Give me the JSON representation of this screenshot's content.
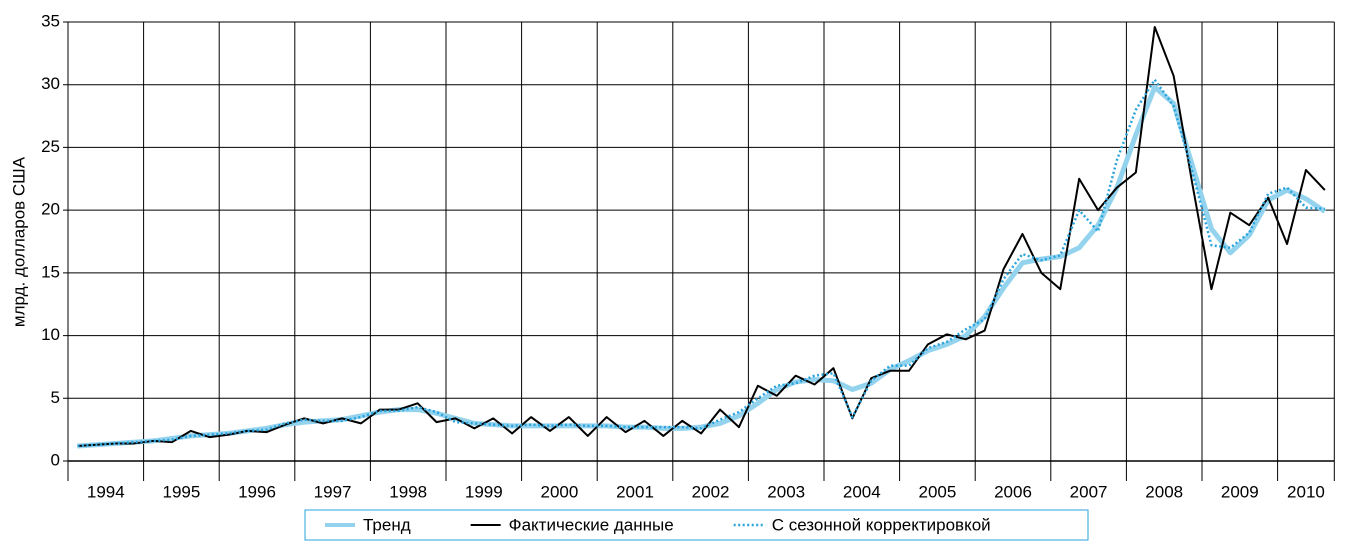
{
  "chart_data": {
    "type": "line",
    "ylabel": "млрд. долларов США",
    "categories": [
      "1994",
      null,
      null,
      null,
      "1995",
      null,
      null,
      null,
      "1996",
      null,
      null,
      null,
      "1997",
      null,
      null,
      null,
      "1998",
      null,
      null,
      null,
      "1999",
      null,
      null,
      null,
      "2000",
      null,
      null,
      null,
      "2001",
      null,
      null,
      null,
      "2002",
      null,
      null,
      null,
      "2003",
      null,
      null,
      null,
      "2004",
      null,
      null,
      null,
      "2005",
      null,
      null,
      null,
      "2006",
      null,
      null,
      null,
      "2007",
      null,
      null,
      null,
      "2008",
      null,
      null,
      null,
      "2009",
      null,
      null,
      null,
      "2010",
      null,
      null
    ],
    "series": [
      {
        "name": "Тренд",
        "color": "#94d3ee",
        "style": "thick",
        "values": [
          1.2,
          1.3,
          1.4,
          1.5,
          1.6,
          1.8,
          2.0,
          2.1,
          2.2,
          2.4,
          2.6,
          2.9,
          3.1,
          3.2,
          3.3,
          3.6,
          3.9,
          4.1,
          4.1,
          3.8,
          3.4,
          3.0,
          2.9,
          2.8,
          2.8,
          2.8,
          2.8,
          2.8,
          2.8,
          2.7,
          2.7,
          2.6,
          2.6,
          2.7,
          3.0,
          3.6,
          4.6,
          5.7,
          6.3,
          6.5,
          6.4,
          5.7,
          6.2,
          7.3,
          8.0,
          8.8,
          9.3,
          10.0,
          11.5,
          13.8,
          15.8,
          16.1,
          16.3,
          17.0,
          18.8,
          21.8,
          26.0,
          29.8,
          28.5,
          23.5,
          18.5,
          16.6,
          18.0,
          20.8,
          21.6,
          20.9,
          19.9
        ]
      },
      {
        "name": "Фактические данные",
        "color": "#000000",
        "style": "solid",
        "values": [
          1.2,
          1.3,
          1.4,
          1.4,
          1.6,
          1.5,
          2.4,
          1.9,
          2.1,
          2.4,
          2.3,
          2.9,
          3.4,
          3.0,
          3.4,
          3.0,
          4.1,
          4.1,
          4.6,
          3.1,
          3.4,
          2.6,
          3.4,
          2.2,
          3.5,
          2.4,
          3.5,
          2.0,
          3.5,
          2.3,
          3.2,
          2.0,
          3.2,
          2.2,
          4.1,
          2.7,
          6.0,
          5.2,
          6.8,
          6.1,
          7.4,
          3.4,
          6.6,
          7.2,
          7.2,
          9.3,
          10.1,
          9.7,
          10.4,
          15.3,
          18.1,
          15.0,
          13.7,
          22.5,
          20.0,
          21.8,
          23.0,
          34.6,
          30.7,
          22.0,
          13.7,
          19.8,
          18.8,
          21.0,
          17.3,
          23.2,
          21.6
        ]
      },
      {
        "name": "С сезонной корректировкой",
        "color": "#29a3dc",
        "style": "dotted",
        "values": [
          1.2,
          1.3,
          1.4,
          1.5,
          1.6,
          1.7,
          2.0,
          2.1,
          2.2,
          2.4,
          2.5,
          3.0,
          3.3,
          3.2,
          3.2,
          3.5,
          4.0,
          4.0,
          4.3,
          3.9,
          3.1,
          3.0,
          2.9,
          2.8,
          2.9,
          2.8,
          2.9,
          2.8,
          2.8,
          2.7,
          2.7,
          2.7,
          2.7,
          2.6,
          3.3,
          3.9,
          5.0,
          6.0,
          6.2,
          6.8,
          7.0,
          3.5,
          6.4,
          7.6,
          7.6,
          9.0,
          9.5,
          10.5,
          11.3,
          14.5,
          16.5,
          16.0,
          16.4,
          20.0,
          18.3,
          24.0,
          28.0,
          30.4,
          28.3,
          23.0,
          17.2,
          17.0,
          18.2,
          21.3,
          21.8,
          20.2,
          20.1
        ]
      }
    ],
    "ylim": [
      0,
      35
    ],
    "yticks": [
      0,
      5,
      10,
      15,
      20,
      25,
      30,
      35
    ],
    "grid": true,
    "legend": "bottom"
  }
}
